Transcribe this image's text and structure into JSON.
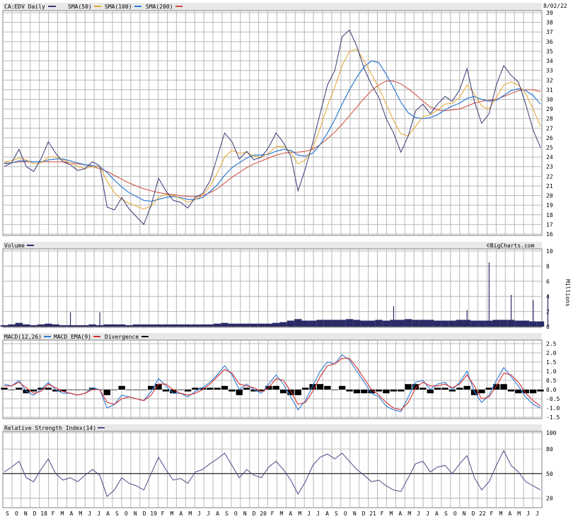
{
  "header": {
    "symbol_label": "CA:EDV Daily",
    "sma50_label": "SMA(50)",
    "sma100_label": "SMA(100)",
    "sma200_label": "SMA(200)",
    "date": "8/02/22",
    "brand": "©BigCharts.com"
  },
  "colors": {
    "price": "#3a3a78",
    "sma50": "#e3a72f",
    "sma100": "#2f7bd6",
    "sma200": "#d04a3a",
    "volume": "#2a2a66",
    "macd": "#2f7bd6",
    "macd_ema": "#d03030",
    "divergence": "#000000",
    "rsi": "#4a4a88"
  },
  "chart_data": [
    {
      "type": "line",
      "title": "CA:EDV Daily",
      "x_tick_labels": [
        "S",
        "O",
        "N",
        "D",
        "18",
        "F",
        "M",
        "A",
        "M",
        "J",
        "J",
        "A",
        "S",
        "O",
        "N",
        "D",
        "19",
        "F",
        "M",
        "A",
        "M",
        "J",
        "J",
        "A",
        "S",
        "O",
        "N",
        "D",
        "20",
        "F",
        "M",
        "A",
        "M",
        "J",
        "J",
        "A",
        "S",
        "O",
        "N",
        "D",
        "21",
        "F",
        "M",
        "A",
        "M",
        "J",
        "J",
        "A",
        "S",
        "O",
        "N",
        "D",
        "22",
        "F",
        "M",
        "A",
        "M",
        "J",
        "J"
      ],
      "y_ticks": [
        16,
        17,
        18,
        19,
        20,
        21,
        22,
        23,
        24,
        25,
        26,
        27,
        28,
        29,
        30,
        31,
        32,
        33,
        34,
        35,
        36,
        37,
        38,
        39
      ],
      "ylim": [
        16,
        39
      ],
      "series": [
        {
          "name": "CA:EDV Daily",
          "values": [
            23.0,
            23.4,
            24.8,
            23.0,
            22.5,
            23.8,
            25.6,
            24.4,
            23.5,
            23.2,
            22.6,
            22.8,
            23.5,
            23.1,
            18.8,
            18.5,
            19.8,
            18.6,
            17.8,
            17.0,
            19.0,
            21.8,
            20.5,
            19.5,
            19.3,
            18.7,
            19.8,
            20.2,
            21.5,
            24.0,
            26.5,
            25.6,
            23.8,
            24.6,
            23.7,
            24.0,
            25.0,
            26.5,
            25.5,
            24.1,
            20.5,
            22.8,
            25.5,
            28.5,
            31.5,
            33.0,
            36.5,
            37.2,
            35.5,
            33.2,
            31.5,
            30.2,
            28.0,
            26.5,
            24.5,
            26.2,
            28.8,
            29.5,
            28.5,
            29.5,
            30.3,
            29.8,
            31.0,
            33.2,
            29.8,
            27.5,
            28.5,
            31.5,
            33.5,
            32.5,
            31.8,
            29.5,
            26.8,
            25.0
          ]
        },
        {
          "name": "SMA(50)",
          "values": [
            23.5,
            23.6,
            23.9,
            23.7,
            23.3,
            23.4,
            24.0,
            24.0,
            23.7,
            23.4,
            23.0,
            22.8,
            23.0,
            23.0,
            21.5,
            20.3,
            19.6,
            19.2,
            18.9,
            18.6,
            18.9,
            19.8,
            20.1,
            20.0,
            19.7,
            19.3,
            19.6,
            20.0,
            21.0,
            22.3,
            24.0,
            24.7,
            24.4,
            24.5,
            24.1,
            24.0,
            24.4,
            25.1,
            25.1,
            24.5,
            23.3,
            23.7,
            25.0,
            27.0,
            29.3,
            31.3,
            33.5,
            35.0,
            35.2,
            34.0,
            32.6,
            31.2,
            29.5,
            27.8,
            26.4,
            26.2,
            27.2,
            28.2,
            28.4,
            28.9,
            29.5,
            29.6,
            30.2,
            31.5,
            30.6,
            29.3,
            29.0,
            30.2,
            31.5,
            31.8,
            31.5,
            30.6,
            29.0,
            27.2
          ]
        },
        {
          "name": "SMA(100)",
          "values": [
            23.3,
            23.4,
            23.6,
            23.6,
            23.5,
            23.5,
            23.7,
            23.8,
            23.8,
            23.6,
            23.4,
            23.2,
            23.1,
            23.0,
            22.4,
            21.6,
            20.9,
            20.3,
            19.9,
            19.5,
            19.4,
            19.6,
            19.8,
            19.9,
            19.8,
            19.6,
            19.6,
            19.8,
            20.4,
            21.1,
            22.1,
            22.9,
            23.4,
            23.9,
            24.2,
            24.2,
            24.3,
            24.6,
            24.8,
            24.7,
            24.2,
            24.1,
            24.4,
            25.3,
            26.5,
            27.9,
            29.5,
            31.0,
            32.3,
            33.4,
            34.0,
            33.8,
            32.6,
            31.2,
            29.7,
            28.6,
            28.1,
            28.0,
            28.1,
            28.4,
            28.9,
            29.3,
            29.6,
            30.1,
            30.3,
            30.0,
            29.8,
            29.9,
            30.4,
            30.9,
            31.1,
            30.9,
            30.4,
            29.5
          ]
        },
        {
          "name": "SMA(200)",
          "values": [
            23.4,
            23.4,
            23.5,
            23.5,
            23.5,
            23.5,
            23.5,
            23.5,
            23.5,
            23.4,
            23.3,
            23.2,
            23.0,
            22.8,
            22.5,
            22.1,
            21.7,
            21.3,
            21.0,
            20.7,
            20.5,
            20.3,
            20.2,
            20.1,
            20.0,
            19.9,
            19.9,
            20.0,
            20.3,
            20.7,
            21.3,
            21.9,
            22.4,
            22.9,
            23.3,
            23.6,
            23.9,
            24.2,
            24.4,
            24.5,
            24.5,
            24.6,
            24.8,
            25.3,
            25.9,
            26.6,
            27.4,
            28.3,
            29.2,
            30.1,
            30.9,
            31.5,
            31.9,
            31.9,
            31.6,
            31.1,
            30.5,
            29.8,
            29.2,
            28.9,
            28.8,
            28.9,
            29.0,
            29.3,
            29.6,
            29.8,
            29.9,
            30.0,
            30.3,
            30.6,
            30.9,
            31.0,
            31.0,
            30.8
          ]
        }
      ]
    },
    {
      "type": "bar",
      "title": "Volume",
      "ylabel": "Millions",
      "y_ticks": [
        0,
        2,
        4,
        6,
        8,
        10
      ],
      "ylim": [
        0,
        10
      ],
      "series": [
        {
          "name": "Volume",
          "values": [
            0.2,
            0.3,
            0.5,
            0.3,
            0.2,
            0.3,
            0.4,
            0.3,
            0.2,
            0.2,
            0.2,
            0.2,
            0.3,
            0.2,
            0.3,
            0.3,
            0.3,
            0.2,
            0.3,
            0.3,
            0.3,
            0.3,
            0.3,
            0.3,
            0.3,
            0.3,
            0.3,
            0.3,
            0.3,
            0.4,
            0.5,
            0.4,
            0.4,
            0.4,
            0.4,
            0.4,
            0.4,
            0.5,
            0.6,
            0.8,
            1.0,
            0.8,
            0.8,
            0.9,
            0.9,
            0.9,
            0.9,
            1.0,
            0.9,
            0.8,
            0.8,
            0.9,
            0.8,
            0.9,
            0.9,
            1.0,
            0.9,
            0.9,
            0.9,
            0.8,
            0.8,
            0.8,
            0.9,
            0.9,
            0.8,
            0.8,
            0.8,
            0.9,
            0.9,
            0.9,
            0.8,
            0.8,
            0.7,
            0.7
          ]
        }
      ],
      "spikes": [
        {
          "index": 9,
          "value": 1.9
        },
        {
          "index": 13,
          "value": 1.9
        },
        {
          "index": 53,
          "value": 2.7
        },
        {
          "index": 63,
          "value": 2.2
        },
        {
          "index": 66,
          "value": 8.5
        },
        {
          "index": 69,
          "value": 4.2
        },
        {
          "index": 72,
          "value": 3.5
        },
        {
          "index": 74,
          "value": 4.2
        }
      ]
    },
    {
      "type": "line",
      "title": "MACD(12,26)",
      "y_ticks": [
        -1.5,
        -1.0,
        -0.5,
        0.0,
        0.5,
        1.0,
        1.5,
        2.0,
        2.5
      ],
      "ylim": [
        -1.5,
        2.5
      ],
      "series": [
        {
          "name": "MACD(12,26)",
          "values": [
            0.3,
            0.2,
            0.5,
            -0.1,
            -0.3,
            0.0,
            0.4,
            0.0,
            -0.2,
            -0.2,
            -0.3,
            -0.2,
            0.1,
            0.0,
            -1.0,
            -0.8,
            -0.3,
            -0.4,
            -0.5,
            -0.6,
            -0.1,
            0.6,
            0.2,
            -0.2,
            -0.2,
            -0.4,
            -0.1,
            0.1,
            0.4,
            0.8,
            1.3,
            0.8,
            0.0,
            0.3,
            0.0,
            -0.2,
            0.3,
            0.8,
            0.3,
            -0.4,
            -1.1,
            -0.6,
            0.2,
            1.0,
            1.5,
            1.4,
            1.9,
            1.6,
            1.0,
            0.4,
            -0.2,
            -0.4,
            -0.9,
            -1.1,
            -1.2,
            -0.4,
            0.4,
            0.5,
            0.0,
            0.3,
            0.4,
            0.0,
            0.4,
            1.0,
            -0.1,
            -0.7,
            -0.3,
            0.5,
            1.2,
            0.7,
            0.2,
            -0.4,
            -0.8,
            -1.0
          ]
        },
        {
          "name": "MACD EMA(9)",
          "values": [
            0.2,
            0.2,
            0.4,
            0.1,
            -0.2,
            -0.1,
            0.3,
            0.1,
            -0.1,
            -0.2,
            -0.3,
            -0.2,
            0.0,
            0.0,
            -0.7,
            -0.8,
            -0.5,
            -0.4,
            -0.5,
            -0.6,
            -0.3,
            0.3,
            0.3,
            0.0,
            -0.2,
            -0.3,
            -0.2,
            0.0,
            0.3,
            0.7,
            1.1,
            0.9,
            0.3,
            0.2,
            0.1,
            -0.1,
            0.1,
            0.6,
            0.5,
            -0.1,
            -0.8,
            -0.7,
            -0.1,
            0.7,
            1.3,
            1.4,
            1.7,
            1.7,
            1.2,
            0.6,
            0.0,
            -0.3,
            -0.7,
            -1.0,
            -1.1,
            -0.7,
            0.1,
            0.4,
            0.2,
            0.2,
            0.3,
            0.1,
            0.3,
            0.8,
            0.2,
            -0.5,
            -0.4,
            0.2,
            0.9,
            0.8,
            0.4,
            -0.2,
            -0.6,
            -0.9
          ]
        },
        {
          "name": "Divergence",
          "values": [
            0.1,
            0.0,
            0.1,
            -0.2,
            -0.1,
            0.1,
            0.1,
            -0.1,
            -0.1,
            0.0,
            0.0,
            0.0,
            0.1,
            0.0,
            -0.3,
            0.0,
            0.2,
            0.0,
            0.0,
            0.0,
            0.2,
            0.3,
            -0.1,
            -0.2,
            0.0,
            -0.1,
            0.1,
            0.1,
            0.1,
            0.1,
            0.2,
            -0.1,
            -0.3,
            0.1,
            -0.1,
            -0.1,
            0.2,
            0.2,
            -0.2,
            -0.3,
            -0.3,
            0.1,
            0.3,
            0.3,
            0.2,
            0.0,
            0.2,
            -0.1,
            -0.2,
            -0.2,
            -0.2,
            -0.1,
            -0.2,
            -0.1,
            -0.1,
            0.3,
            0.3,
            0.1,
            -0.2,
            0.1,
            0.1,
            -0.1,
            0.1,
            0.2,
            -0.3,
            -0.2,
            0.1,
            0.3,
            0.3,
            -0.1,
            -0.2,
            -0.2,
            -0.2,
            -0.1
          ]
        }
      ]
    },
    {
      "type": "line",
      "title": "Relative Strength Index(14)",
      "y_ticks": [
        20,
        50,
        80,
        100
      ],
      "ylim": [
        10,
        100
      ],
      "reference_line": 50,
      "series": [
        {
          "name": "Relative Strength Index(14)",
          "values": [
            52,
            58,
            65,
            45,
            40,
            55,
            68,
            50,
            42,
            45,
            40,
            48,
            55,
            48,
            22,
            30,
            45,
            38,
            35,
            30,
            50,
            70,
            55,
            42,
            44,
            38,
            52,
            55,
            62,
            68,
            75,
            60,
            45,
            55,
            48,
            45,
            58,
            65,
            55,
            42,
            25,
            40,
            60,
            70,
            74,
            68,
            75,
            65,
            55,
            48,
            40,
            42,
            35,
            30,
            28,
            45,
            62,
            65,
            52,
            58,
            60,
            50,
            62,
            72,
            45,
            30,
            40,
            60,
            78,
            60,
            52,
            40,
            35,
            30
          ]
        }
      ]
    }
  ]
}
